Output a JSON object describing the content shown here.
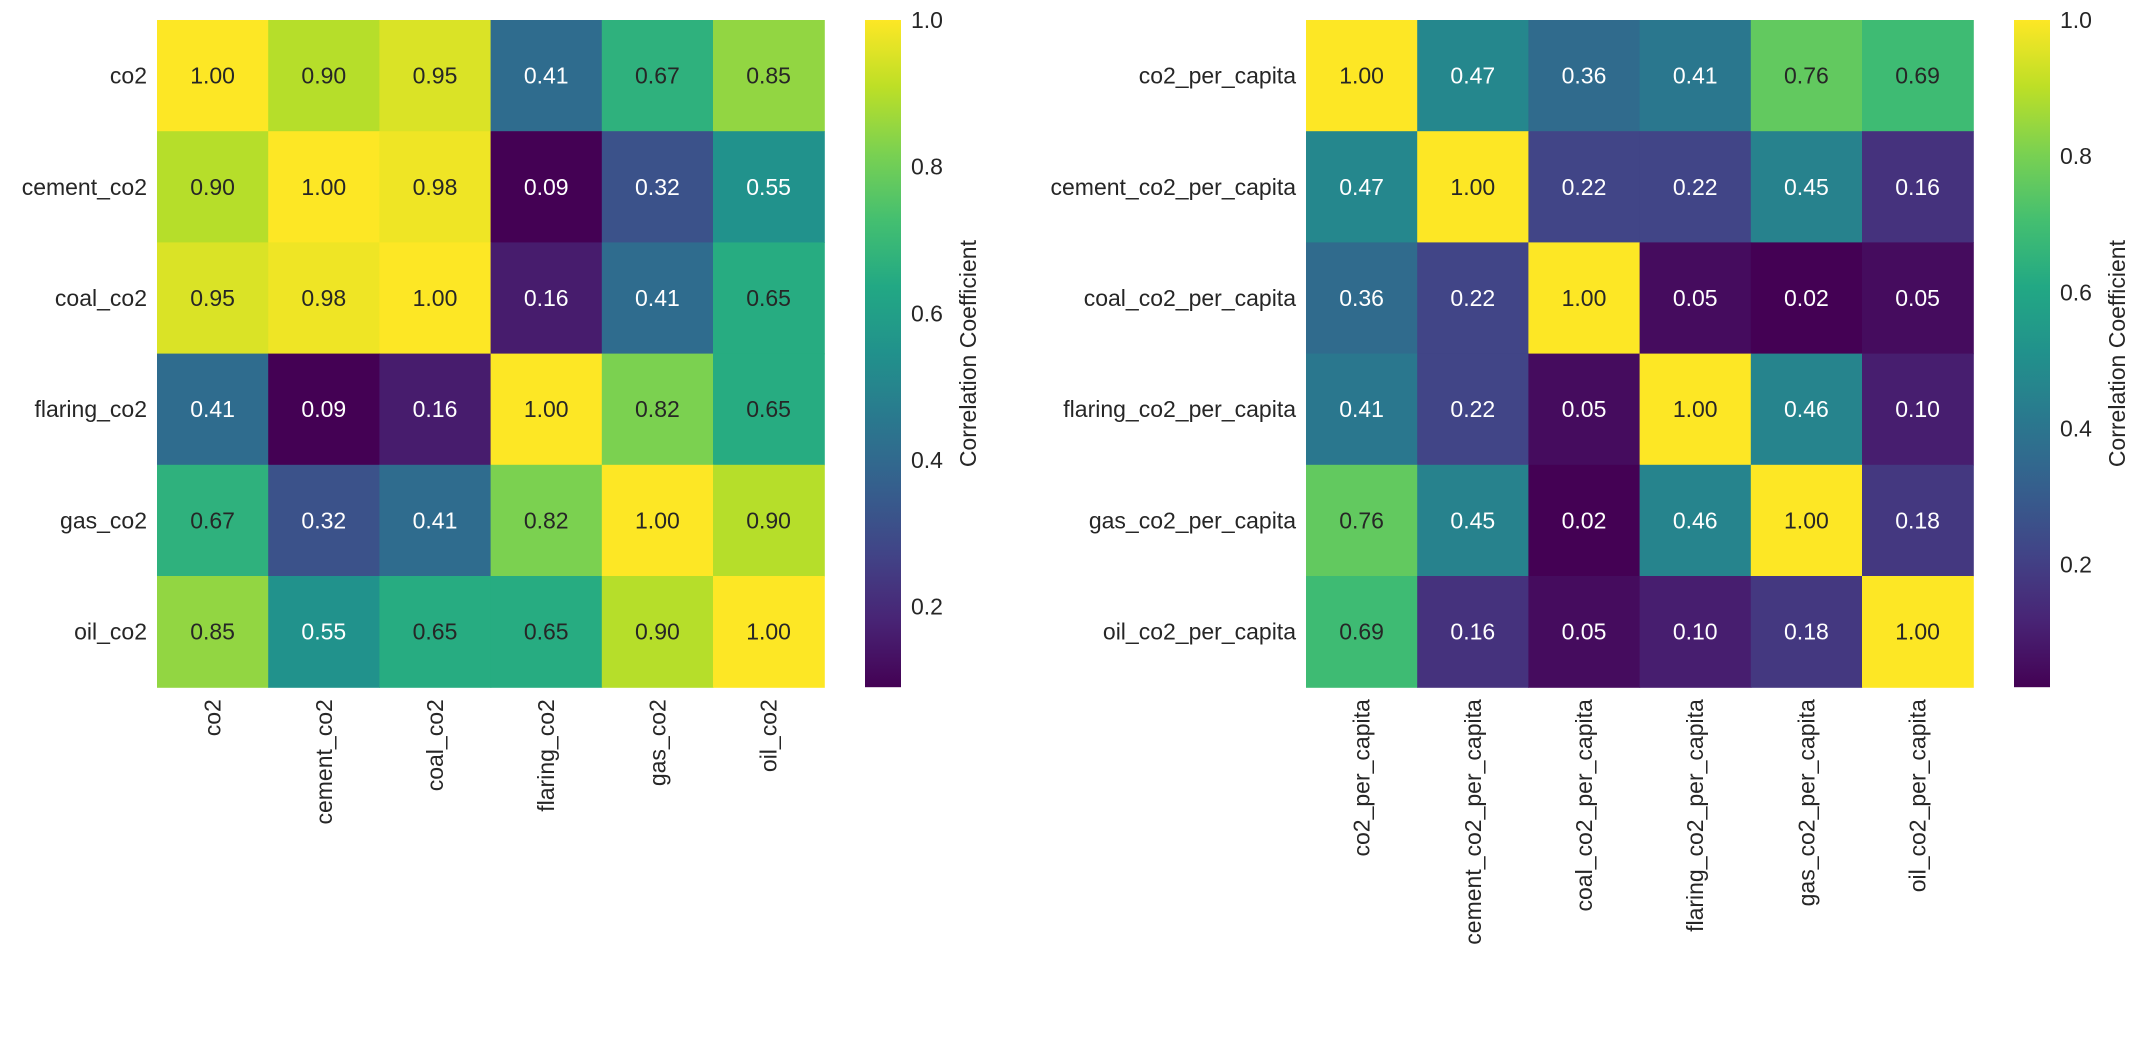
{
  "chart_data": [
    {
      "type": "heatmap",
      "title": "",
      "rows": [
        "co2",
        "cement_co2",
        "coal_co2",
        "flaring_co2",
        "gas_co2",
        "oil_co2"
      ],
      "columns": [
        "co2",
        "cement_co2",
        "coal_co2",
        "flaring_co2",
        "gas_co2",
        "oil_co2"
      ],
      "values": [
        [
          1.0,
          0.9,
          0.95,
          0.41,
          0.67,
          0.85
        ],
        [
          0.9,
          1.0,
          0.98,
          0.09,
          0.32,
          0.55
        ],
        [
          0.95,
          0.98,
          1.0,
          0.16,
          0.41,
          0.65
        ],
        [
          0.41,
          0.09,
          0.16,
          1.0,
          0.82,
          0.65
        ],
        [
          0.67,
          0.32,
          0.41,
          0.82,
          1.0,
          0.9
        ],
        [
          0.85,
          0.55,
          0.65,
          0.65,
          0.9,
          1.0
        ]
      ],
      "colormap": "viridis",
      "vmin": 0.09,
      "vmax": 1.0,
      "colorbar": {
        "label": "Correlation Coefficient",
        "ticks": [
          0.2,
          0.4,
          0.6,
          0.8,
          1.0
        ],
        "tick_labels": [
          "0.2",
          "0.4",
          "0.6",
          "0.8",
          "1.0"
        ]
      }
    },
    {
      "type": "heatmap",
      "title": "",
      "rows": [
        "co2_per_capita",
        "cement_co2_per_capita",
        "coal_co2_per_capita",
        "flaring_co2_per_capita",
        "gas_co2_per_capita",
        "oil_co2_per_capita"
      ],
      "columns": [
        "co2_per_capita",
        "cement_co2_per_capita",
        "coal_co2_per_capita",
        "flaring_co2_per_capita",
        "gas_co2_per_capita",
        "oil_co2_per_capita"
      ],
      "values": [
        [
          1.0,
          0.47,
          0.36,
          0.41,
          0.76,
          0.69
        ],
        [
          0.47,
          1.0,
          0.22,
          0.22,
          0.45,
          0.16
        ],
        [
          0.36,
          0.22,
          1.0,
          0.05,
          0.02,
          0.05
        ],
        [
          0.41,
          0.22,
          0.05,
          1.0,
          0.46,
          0.1
        ],
        [
          0.76,
          0.45,
          0.02,
          0.46,
          1.0,
          0.18
        ],
        [
          0.69,
          0.16,
          0.05,
          0.1,
          0.18,
          1.0
        ]
      ],
      "colormap": "viridis",
      "vmin": 0.02,
      "vmax": 1.0,
      "colorbar": {
        "label": "Correlation Coefficient",
        "ticks": [
          0.2,
          0.4,
          0.6,
          0.8,
          1.0
        ],
        "tick_labels": [
          "0.2",
          "0.4",
          "0.6",
          "0.8",
          "1.0"
        ]
      }
    }
  ]
}
